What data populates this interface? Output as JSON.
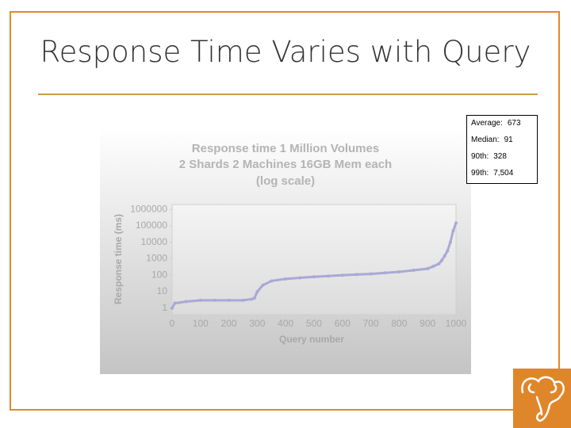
{
  "slide": {
    "title": "Response Time Varies with Query",
    "stats": [
      {
        "label": "Average:",
        "value": "673"
      },
      {
        "label": "Median:",
        "value": "91"
      },
      {
        "label": "90th:",
        "value": "328"
      },
      {
        "label": "99th:",
        "value": "7,504"
      }
    ]
  },
  "chart_data": {
    "type": "line",
    "title": "Response time 1 Million Volumes",
    "subtitle": "2 Shards 2 Machines 16GB Mem each",
    "annotation": "(log scale)",
    "x_label": "Query number",
    "y_label": "Response time (ms)",
    "x": [
      0,
      10,
      50,
      100,
      150,
      200,
      250,
      280,
      290,
      300,
      320,
      350,
      400,
      450,
      500,
      550,
      600,
      650,
      700,
      750,
      800,
      850,
      900,
      920,
      940,
      950,
      960,
      970,
      980,
      990,
      1000
    ],
    "values": [
      1,
      2,
      2.5,
      3,
      3,
      3,
      3,
      3.5,
      4,
      10,
      25,
      45,
      60,
      70,
      80,
      90,
      100,
      110,
      120,
      140,
      160,
      200,
      250,
      350,
      500,
      800,
      1500,
      3000,
      10000,
      50000,
      150000
    ],
    "color": "#a9a9d6",
    "xlim": [
      0,
      1000
    ],
    "xticks": [
      0,
      100,
      200,
      300,
      400,
      500,
      600,
      700,
      800,
      900,
      1000
    ],
    "ylim": [
      0.4,
      2000000
    ],
    "yticks": [
      1,
      10,
      100,
      1000,
      10000,
      100000,
      1000000
    ],
    "log_y": true,
    "grid": false
  }
}
